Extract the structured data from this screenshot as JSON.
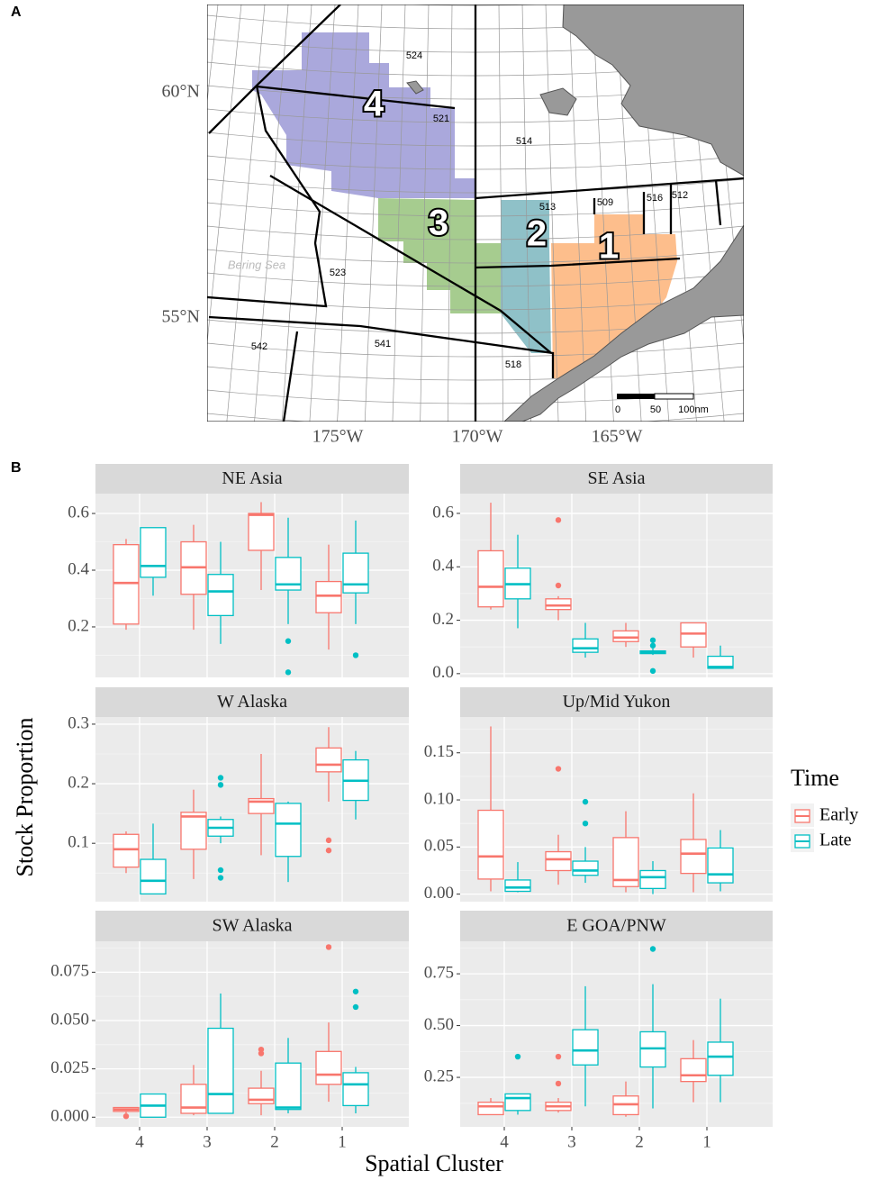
{
  "panel_labels": [
    "A",
    "B"
  ],
  "map": {
    "lat_labels": [
      "60°N",
      "55°N"
    ],
    "lon_labels": [
      "175°W",
      "170°W",
      "165°W"
    ],
    "areas": [
      "524",
      "521",
      "514",
      "513",
      "509",
      "516",
      "512",
      "523",
      "542",
      "541",
      "518"
    ],
    "clusters": [
      "4",
      "3",
      "2",
      "1"
    ],
    "sea_label": "Bering Sea",
    "scale_labels": [
      "0",
      "50",
      "100nm"
    ]
  },
  "chart_data": {
    "type": "box",
    "categories": [
      "4",
      "3",
      "2",
      "1"
    ],
    "x_label": "Spatial Cluster",
    "y_label": "Stock Proportion",
    "legend_title": "Time",
    "series": [
      {
        "name": "Early",
        "color": "#f8766d"
      },
      {
        "name": "Late",
        "color": "#00bfc4"
      }
    ],
    "facets": [
      {
        "title": "NE Asia",
        "ylim": [
          0.022,
          0.67
        ],
        "yticks": [
          0.2,
          0.4,
          0.6
        ],
        "series": [
          {
            "min": [
              0.19,
              0.19,
              0.33,
              0.12
            ],
            "q1": [
              0.21,
              0.315,
              0.47,
              0.25
            ],
            "median": [
              0.355,
              0.41,
              0.595,
              0.31
            ],
            "q3": [
              0.49,
              0.5,
              0.6,
              0.36
            ],
            "max": [
              0.51,
              0.56,
              0.64,
              0.49
            ],
            "outliers": [
              [],
              [],
              [],
              []
            ]
          },
          {
            "min": [
              0.31,
              0.14,
              0.21,
              0.21
            ],
            "q1": [
              0.375,
              0.24,
              0.33,
              0.32
            ],
            "median": [
              0.415,
              0.325,
              0.35,
              0.35
            ],
            "q3": [
              0.55,
              0.385,
              0.445,
              0.46
            ],
            "max": [
              0.55,
              0.5,
              0.585,
              0.575
            ],
            "outliers": [
              [],
              [],
              [
                0.15,
                0.04
              ],
              [
                0.1
              ]
            ]
          }
        ]
      },
      {
        "title": "SE Asia",
        "ylim": [
          -0.014,
          0.674
        ],
        "yticks": [
          {
            "value": 0,
            "label": "0.0"
          },
          0.2,
          0.4,
          0.6
        ],
        "series": [
          {
            "min": [
              0.24,
              0.2,
              0.1,
              0.06
            ],
            "q1": [
              0.25,
              0.24,
              0.12,
              0.1
            ],
            "median": [
              0.325,
              0.255,
              0.135,
              0.15
            ],
            "q3": [
              0.46,
              0.28,
              0.16,
              0.19
            ],
            "max": [
              0.64,
              0.29,
              0.19,
              0.19
            ],
            "outliers": [
              [],
              [
                0.575,
                0.33
              ],
              [],
              []
            ]
          },
          {
            "min": [
              0.17,
              0.06,
              0.07,
              0.02
            ],
            "q1": [
              0.28,
              0.08,
              0.075,
              0.02
            ],
            "median": [
              0.335,
              0.095,
              0.08,
              0.025
            ],
            "q3": [
              0.395,
              0.13,
              0.085,
              0.065
            ],
            "max": [
              0.52,
              0.19,
              0.095,
              0.105
            ],
            "outliers": [
              [],
              [],
              [
                0.125,
                0.105,
                0.01
              ],
              []
            ]
          }
        ]
      },
      {
        "title": "W Alaska",
        "ylim": [
          0.002,
          0.312
        ],
        "yticks": [
          0.1,
          0.2,
          0.3
        ],
        "series": [
          {
            "min": [
              0.05,
              0.04,
              0.08,
              0.17
            ],
            "q1": [
              0.06,
              0.09,
              0.15,
              0.22
            ],
            "median": [
              0.09,
              0.145,
              0.17,
              0.232
            ],
            "q3": [
              0.115,
              0.152,
              0.175,
              0.26
            ],
            "max": [
              0.12,
              0.19,
              0.25,
              0.295
            ],
            "outliers": [
              [],
              [],
              [],
              [
                0.105,
                0.088
              ]
            ]
          },
          {
            "min": [
              0.015,
              0.1,
              0.035,
              0.14
            ],
            "q1": [
              0.015,
              0.112,
              0.078,
              0.172
            ],
            "median": [
              0.037,
              0.126,
              0.133,
              0.205
            ],
            "q3": [
              0.073,
              0.14,
              0.167,
              0.24
            ],
            "max": [
              0.133,
              0.145,
              0.17,
              0.255
            ],
            "outliers": [
              [],
              [
                0.21,
                0.198,
                0.055,
                0.042
              ],
              [],
              []
            ]
          }
        ]
      },
      {
        "title": "Up/Mid Yukon",
        "ylim": [
          -0.008,
          0.188
        ],
        "yticks": [
          {
            "value": 0,
            "label": "0.00"
          },
          0.05,
          {
            "value": 0.1,
            "label": "0.10"
          },
          0.15
        ],
        "series": [
          {
            "min": [
              0.003,
              0.01,
              0.002,
              0.002
            ],
            "q1": [
              0.016,
              0.025,
              0.008,
              0.022
            ],
            "median": [
              0.04,
              0.037,
              0.015,
              0.043
            ],
            "q3": [
              0.089,
              0.045,
              0.06,
              0.058
            ],
            "max": [
              0.178,
              0.063,
              0.088,
              0.107
            ],
            "outliers": [
              [],
              [
                0.133
              ],
              [],
              []
            ]
          },
          {
            "min": [
              0.002,
              0.012,
              0,
              0.003
            ],
            "q1": [
              0.003,
              0.02,
              0.006,
              0.012
            ],
            "median": [
              0.007,
              0.025,
              0.018,
              0.021
            ],
            "q3": [
              0.015,
              0.035,
              0.025,
              0.049
            ],
            "max": [
              0.034,
              0.05,
              0.035,
              0.068
            ],
            "outliers": [
              [],
              [
                0.098,
                0.075
              ],
              [],
              []
            ]
          }
        ]
      },
      {
        "title": "SW Alaska",
        "ylim": [
          -0.005,
          0.091
        ],
        "yticks": [
          {
            "value": 0,
            "label": "0.000"
          },
          0.025,
          {
            "value": 0.05,
            "label": "0.050"
          },
          0.075
        ],
        "series": [
          {
            "min": [
              0.002,
              0.001,
              0.001,
              0.008
            ],
            "q1": [
              0.003,
              0.002,
              0.007,
              0.017
            ],
            "median": [
              0.004,
              0.005,
              0.009,
              0.022
            ],
            "q3": [
              0.005,
              0.017,
              0.015,
              0.034
            ],
            "max": [
              0.005,
              0.027,
              0.024,
              0.049
            ],
            "outliers": [
              [
                0.0005
              ],
              [],
              [
                0.035,
                0.033
              ],
              [
                0.088
              ]
            ]
          },
          {
            "min": [
              0,
              0.002,
              0.002,
              0.002
            ],
            "q1": [
              0,
              0.002,
              0.004,
              0.006
            ],
            "median": [
              0.006,
              0.012,
              0.005,
              0.017
            ],
            "q3": [
              0.012,
              0.046,
              0.028,
              0.023
            ],
            "max": [
              0.012,
              0.064,
              0.041,
              0.026
            ],
            "outliers": [
              [],
              [],
              [],
              [
                0.065,
                0.057
              ]
            ]
          }
        ]
      },
      {
        "title": "E GOA/PNW",
        "ylim": [
          0.011,
          0.907
        ],
        "yticks": [
          0.25,
          {
            "value": 0.5,
            "label": "0.50"
          },
          0.75
        ],
        "series": [
          {
            "min": [
              0.07,
              0.08,
              0.06,
              0.13
            ],
            "q1": [
              0.07,
              0.09,
              0.07,
              0.23
            ],
            "median": [
              0.11,
              0.11,
              0.12,
              0.26
            ],
            "q3": [
              0.13,
              0.13,
              0.16,
              0.34
            ],
            "max": [
              0.15,
              0.15,
              0.23,
              0.43
            ],
            "outliers": [
              [],
              [
                0.35,
                0.22
              ],
              [],
              []
            ]
          },
          {
            "min": [
              0.07,
              0.11,
              0.1,
              0.13
            ],
            "q1": [
              0.09,
              0.31,
              0.3,
              0.26
            ],
            "median": [
              0.15,
              0.38,
              0.39,
              0.35
            ],
            "q3": [
              0.17,
              0.48,
              0.47,
              0.42
            ],
            "max": [
              0.17,
              0.69,
              0.7,
              0.63
            ],
            "outliers": [
              [
                0.35
              ],
              [],
              [
                0.87
              ],
              []
            ]
          }
        ]
      }
    ]
  }
}
